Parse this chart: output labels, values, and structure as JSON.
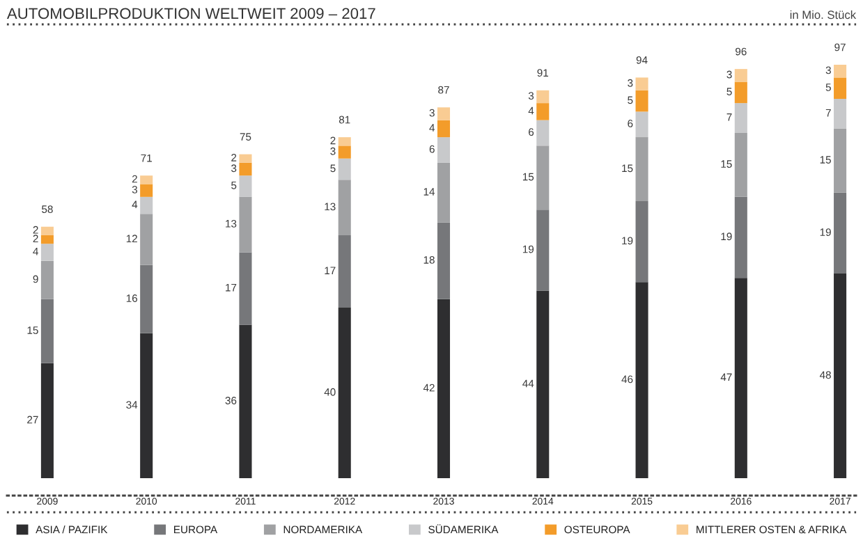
{
  "chart_data": {
    "type": "bar",
    "title": "AUTOMOBILPRODUKTION WELTWEIT 2009 – 2017",
    "subtitle": "in Mio. Stück",
    "categories": [
      "2009",
      "2010",
      "2011",
      "2012",
      "2013",
      "2014",
      "2015",
      "2016",
      "2017"
    ],
    "stacked": true,
    "data_labels": true,
    "tick_labels": "x",
    "legend": "bottom",
    "totals": [
      "58",
      "71",
      "75",
      "81",
      "87",
      "91",
      "94",
      "96",
      "97"
    ],
    "series": [
      {
        "name": "ASIA / PAZIFIK",
        "color": "#2e2e30",
        "values": [
          27,
          34,
          36,
          40,
          42,
          44,
          46,
          47,
          48
        ]
      },
      {
        "name": "EUROPA",
        "color": "#76777a",
        "values": [
          15,
          16,
          17,
          17,
          18,
          19,
          19,
          19,
          19
        ]
      },
      {
        "name": "NORDAMERIKA",
        "color": "#a0a1a3",
        "values": [
          9,
          12,
          13,
          13,
          14,
          15,
          15,
          15,
          15
        ]
      },
      {
        "name": "SÜDAMERIKA",
        "color": "#c8c9cb",
        "values": [
          4,
          4,
          5,
          5,
          6,
          6,
          6,
          7,
          7
        ]
      },
      {
        "name": "OSTEUROPA",
        "color": "#f39c2a",
        "values": [
          2,
          3,
          3,
          3,
          4,
          4,
          5,
          5,
          5
        ]
      },
      {
        "name": "MITTLERER OSTEN & AFRIKA",
        "color": "#f9cc93",
        "values": [
          2,
          2,
          2,
          2,
          3,
          3,
          3,
          3,
          3
        ]
      }
    ]
  }
}
